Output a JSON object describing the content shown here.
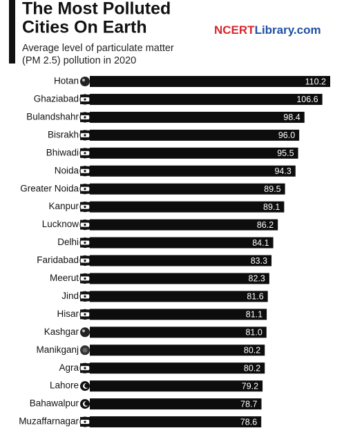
{
  "chart_data": {
    "type": "bar",
    "orientation": "horizontal",
    "title": [
      "The Most Polluted",
      "Cities On Earth"
    ],
    "subtitle": [
      "Average level of particulate matter",
      "(PM 2.5) pollution in 2020"
    ],
    "brand": [
      "NCERT",
      "Library.com"
    ],
    "brand_colors": [
      "#d7262b",
      "#1e4fa3"
    ],
    "color": "#0d0d0d",
    "categories": [
      "Hotan",
      "Ghaziabad",
      "Bulandshahr",
      "Bisrakh",
      "Bhiwadi",
      "Noida",
      "Greater Noida",
      "Kanpur",
      "Lucknow",
      "Delhi",
      "Faridabad",
      "Meerut",
      "Jind",
      "Hisar",
      "Kashgar",
      "Manikganj",
      "Agra",
      "Lahore",
      "Bahawalpur",
      "Muzaffarnagar"
    ],
    "values": [
      110.2,
      106.6,
      98.4,
      96.0,
      95.5,
      94.3,
      89.5,
      89.1,
      86.2,
      84.1,
      83.3,
      82.3,
      81.6,
      81.1,
      81.0,
      80.2,
      80.2,
      79.2,
      78.7,
      78.6
    ],
    "value_labels": [
      "110.2",
      "106.6",
      "98.4",
      "96.0",
      "95.5",
      "94.3",
      "89.5",
      "89.1",
      "86.2",
      "84.1",
      "83.3",
      "82.3",
      "81.6",
      "81.1",
      "81.0",
      "80.2",
      "80.2",
      "79.2",
      "78.7",
      "78.6"
    ]
  }
}
